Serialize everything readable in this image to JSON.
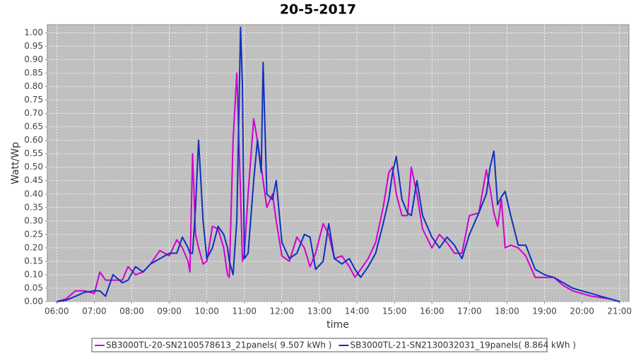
{
  "chart_data": {
    "type": "line",
    "title": "20-5-2017",
    "x_label": "time",
    "y_label": "Watt/Wp",
    "x": [
      6.0,
      6.25,
      6.5,
      6.75,
      7.0,
      7.15,
      7.3,
      7.5,
      7.75,
      7.9,
      8.1,
      8.3,
      8.5,
      8.75,
      9.0,
      9.2,
      9.35,
      9.5,
      9.55,
      9.62,
      9.7,
      9.78,
      9.9,
      10.0,
      10.15,
      10.3,
      10.45,
      10.55,
      10.6,
      10.7,
      10.8,
      10.9,
      10.95,
      11.0,
      11.1,
      11.25,
      11.35,
      11.45,
      11.5,
      11.6,
      11.75,
      11.85,
      12.0,
      12.2,
      12.4,
      12.6,
      12.75,
      12.9,
      13.1,
      13.25,
      13.4,
      13.6,
      13.8,
      13.95,
      14.1,
      14.3,
      14.5,
      14.7,
      14.85,
      14.95,
      15.05,
      15.2,
      15.35,
      15.45,
      15.6,
      15.75,
      16.0,
      16.2,
      16.4,
      16.6,
      16.8,
      17.0,
      17.25,
      17.45,
      17.55,
      17.65,
      17.75,
      17.85,
      17.95,
      18.1,
      18.3,
      18.5,
      18.75,
      19.0,
      19.25,
      19.5,
      19.75,
      20.0,
      20.25,
      20.5,
      20.75,
      21.0
    ],
    "series": [
      {
        "name": "SB3000TL-20-SN2100578613_21panels( 9.507 kWh )",
        "color": "#d000d0",
        "values": [
          0.0,
          0.01,
          0.04,
          0.04,
          0.03,
          0.11,
          0.08,
          0.08,
          0.08,
          0.13,
          0.1,
          0.11,
          0.14,
          0.19,
          0.17,
          0.23,
          0.2,
          0.15,
          0.11,
          0.55,
          0.25,
          0.2,
          0.14,
          0.15,
          0.28,
          0.27,
          0.2,
          0.1,
          0.09,
          0.6,
          0.85,
          0.4,
          0.15,
          0.18,
          0.4,
          0.68,
          0.6,
          0.5,
          0.45,
          0.35,
          0.4,
          0.3,
          0.17,
          0.15,
          0.24,
          0.2,
          0.13,
          0.18,
          0.29,
          0.25,
          0.16,
          0.17,
          0.13,
          0.09,
          0.12,
          0.16,
          0.22,
          0.35,
          0.48,
          0.5,
          0.4,
          0.32,
          0.32,
          0.5,
          0.4,
          0.27,
          0.2,
          0.25,
          0.22,
          0.18,
          0.18,
          0.32,
          0.33,
          0.49,
          0.42,
          0.33,
          0.28,
          0.38,
          0.2,
          0.21,
          0.2,
          0.17,
          0.09,
          0.09,
          0.09,
          0.06,
          0.04,
          0.03,
          0.02,
          0.015,
          0.01,
          0.0
        ]
      },
      {
        "name": "SB3000TL-21-SN2130032031_19panels( 8.864 kWh )",
        "color": "#1030c0",
        "values": [
          0.0,
          0.005,
          0.02,
          0.035,
          0.04,
          0.04,
          0.02,
          0.1,
          0.07,
          0.08,
          0.13,
          0.11,
          0.14,
          0.16,
          0.18,
          0.18,
          0.24,
          0.2,
          0.18,
          0.18,
          0.35,
          0.6,
          0.3,
          0.16,
          0.2,
          0.28,
          0.25,
          0.2,
          0.15,
          0.1,
          0.3,
          1.02,
          0.8,
          0.16,
          0.18,
          0.45,
          0.6,
          0.48,
          0.89,
          0.4,
          0.38,
          0.45,
          0.22,
          0.16,
          0.18,
          0.25,
          0.24,
          0.12,
          0.15,
          0.29,
          0.16,
          0.14,
          0.16,
          0.12,
          0.09,
          0.13,
          0.18,
          0.29,
          0.38,
          0.48,
          0.54,
          0.38,
          0.33,
          0.32,
          0.45,
          0.32,
          0.24,
          0.2,
          0.24,
          0.21,
          0.16,
          0.25,
          0.33,
          0.4,
          0.5,
          0.56,
          0.36,
          0.39,
          0.41,
          0.32,
          0.21,
          0.21,
          0.12,
          0.1,
          0.09,
          0.07,
          0.05,
          0.04,
          0.03,
          0.02,
          0.01,
          0.0
        ]
      }
    ],
    "xlim": [
      5.75,
      21.25
    ],
    "ylim": [
      0,
      1.03
    ],
    "xticks": [
      {
        "value": 6,
        "label": "06:00"
      },
      {
        "value": 7,
        "label": "07:00"
      },
      {
        "value": 8,
        "label": "08:00"
      },
      {
        "value": 9,
        "label": "09:00"
      },
      {
        "value": 10,
        "label": "10:00"
      },
      {
        "value": 11,
        "label": "11:00"
      },
      {
        "value": 12,
        "label": "12:00"
      },
      {
        "value": 13,
        "label": "13:00"
      },
      {
        "value": 14,
        "label": "14:00"
      },
      {
        "value": 15,
        "label": "15:00"
      },
      {
        "value": 16,
        "label": "16:00"
      },
      {
        "value": 17,
        "label": "17:00"
      },
      {
        "value": 18,
        "label": "18:00"
      },
      {
        "value": 19,
        "label": "19:00"
      },
      {
        "value": 20,
        "label": "20:00"
      },
      {
        "value": 21,
        "label": "21:00"
      }
    ],
    "yticks": [
      {
        "value": 0,
        "label": "0.00"
      },
      {
        "value": 0.05,
        "label": "0.05"
      },
      {
        "value": 0.1,
        "label": "0.10"
      },
      {
        "value": 0.15,
        "label": "0.15"
      },
      {
        "value": 0.2,
        "label": "0.20"
      },
      {
        "value": 0.25,
        "label": "0.25"
      },
      {
        "value": 0.3,
        "label": "0.30"
      },
      {
        "value": 0.35,
        "label": "0.35"
      },
      {
        "value": 0.4,
        "label": "0.40"
      },
      {
        "value": 0.45,
        "label": "0.45"
      },
      {
        "value": 0.5,
        "label": "0.50"
      },
      {
        "value": 0.55,
        "label": "0.55"
      },
      {
        "value": 0.6,
        "label": "0.60"
      },
      {
        "value": 0.65,
        "label": "0.65"
      },
      {
        "value": 0.7,
        "label": "0.70"
      },
      {
        "value": 0.75,
        "label": "0.75"
      },
      {
        "value": 0.8,
        "label": "0.80"
      },
      {
        "value": 0.85,
        "label": "0.85"
      },
      {
        "value": 0.9,
        "label": "0.90"
      },
      {
        "value": 0.95,
        "label": "0.95"
      },
      {
        "value": 1,
        "label": "1.00"
      }
    ],
    "grid": true
  }
}
